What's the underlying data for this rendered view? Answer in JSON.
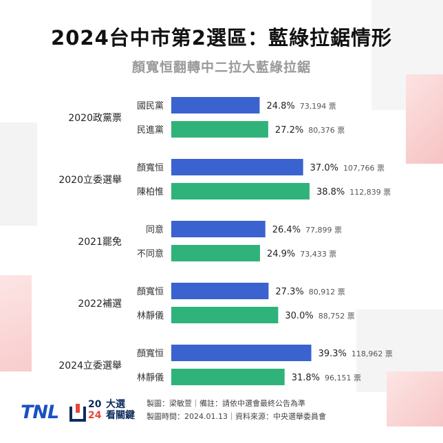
{
  "header": {
    "title": "2024台中市第2選區：藍綠拉鋸情形",
    "subtitle": "顏寬恒翻轉中二拉大藍綠拉鋸"
  },
  "colors": {
    "blue": "#3a63cf",
    "green": "#2fb37a",
    "background": "#ffffff",
    "decor_red": "#f6c9c9"
  },
  "chart_data": {
    "type": "bar",
    "orientation": "horizontal",
    "xlim": [
      0,
      40
    ],
    "vote_unit": "票",
    "groups": [
      {
        "label": "2020政黨票",
        "bars": [
          {
            "name": "國民黨",
            "pct": 24.8,
            "pct_label": "24.8%",
            "votes": "73,194",
            "color": "blue"
          },
          {
            "name": "民進黨",
            "pct": 27.2,
            "pct_label": "27.2%",
            "votes": "80,376",
            "color": "green"
          }
        ]
      },
      {
        "label": "2020立委選舉",
        "bars": [
          {
            "name": "顏寬恒",
            "pct": 37.0,
            "pct_label": "37.0%",
            "votes": "107,766",
            "color": "blue"
          },
          {
            "name": "陳柏惟",
            "pct": 38.8,
            "pct_label": "38.8%",
            "votes": "112,839",
            "color": "green"
          }
        ]
      },
      {
        "label": "2021罷免",
        "bars": [
          {
            "name": "同意",
            "pct": 26.4,
            "pct_label": "26.4%",
            "votes": "77,899",
            "color": "blue"
          },
          {
            "name": "不同意",
            "pct": 24.9,
            "pct_label": "24.9%",
            "votes": "73,433",
            "color": "green"
          }
        ]
      },
      {
        "label": "2022補選",
        "bars": [
          {
            "name": "顏寬恒",
            "pct": 27.3,
            "pct_label": "27.3%",
            "votes": "80,912",
            "color": "blue"
          },
          {
            "name": "林靜儀",
            "pct": 30.0,
            "pct_label": "30.0%",
            "votes": "88,752",
            "color": "green"
          }
        ]
      },
      {
        "label": "2024立委選舉",
        "bars": [
          {
            "name": "顏寬恒",
            "pct": 39.3,
            "pct_label": "39.3%",
            "votes": "118,962",
            "color": "blue"
          },
          {
            "name": "林靜儀",
            "pct": 31.8,
            "pct_label": "31.8%",
            "votes": "96,151",
            "color": "green"
          }
        ]
      }
    ]
  },
  "footer": {
    "logo_tnl": "TNL",
    "logo_2024_top": "20",
    "logo_2024_bottom": "24",
    "logo_text_top": "大選",
    "logo_text_bottom": "看關鍵",
    "credit_line1": "製圖：梁敏萱｜備註：請依中選會最終公告為準",
    "credit_line2": "製圖時間：2024.01.13｜資料來源：中央選舉委員會"
  }
}
